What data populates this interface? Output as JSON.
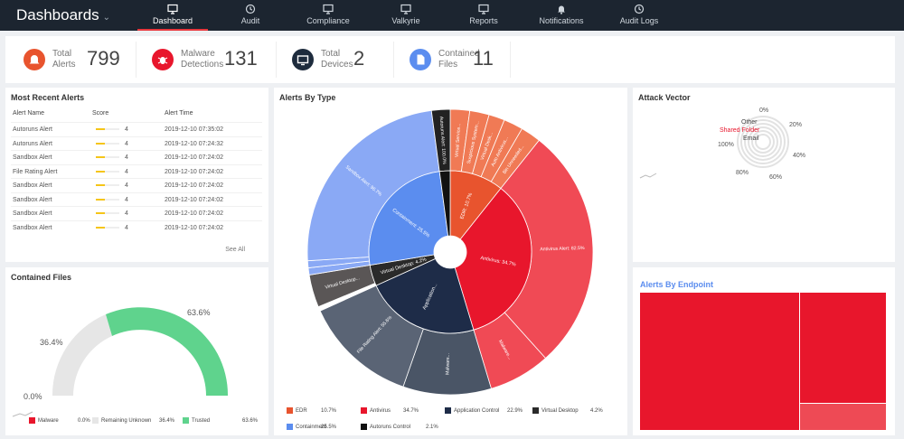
{
  "header": {
    "title": "Dashboards"
  },
  "nav": [
    {
      "label": "Dashboard",
      "icon": "monitor-icon",
      "active": true
    },
    {
      "label": "Audit",
      "icon": "history-icon",
      "active": false
    },
    {
      "label": "Compliance",
      "icon": "monitor-icon",
      "active": false
    },
    {
      "label": "Valkyrie",
      "icon": "monitor-icon",
      "active": false
    },
    {
      "label": "Reports",
      "icon": "monitor-icon",
      "active": false
    },
    {
      "label": "Notifications",
      "icon": "bell-icon",
      "active": false
    },
    {
      "label": "Audit Logs",
      "icon": "history-icon",
      "active": false
    }
  ],
  "stats": [
    {
      "name": "Total Alerts",
      "value": "799",
      "color": "#e8542e",
      "icon": "bell-icon"
    },
    {
      "name": "Malware Detections",
      "value": "131",
      "color": "#e8162c",
      "icon": "bug-icon"
    },
    {
      "name": "Total Devices",
      "value": "2",
      "color": "#1e2c3d",
      "icon": "monitor-icon"
    },
    {
      "name": "Contained Files",
      "value": "11",
      "color": "#5b8def",
      "icon": "file-icon"
    }
  ],
  "recent_alerts": {
    "title": "Most Recent Alerts",
    "headers": [
      "Alert Name",
      "Score",
      "Alert Time"
    ],
    "rows": [
      {
        "name": "Autoruns Alert",
        "score": "4",
        "time": "2019-12-10 07:35:02"
      },
      {
        "name": "Autoruns Alert",
        "score": "4",
        "time": "2019-12-10 07:24:32"
      },
      {
        "name": "Sandbox Alert",
        "score": "4",
        "time": "2019-12-10 07:24:02"
      },
      {
        "name": "File Rating Alert",
        "score": "4",
        "time": "2019-12-10 07:24:02"
      },
      {
        "name": "Sandbox Alert",
        "score": "4",
        "time": "2019-12-10 07:24:02"
      },
      {
        "name": "Sandbox Alert",
        "score": "4",
        "time": "2019-12-10 07:24:02"
      },
      {
        "name": "Sandbox Alert",
        "score": "4",
        "time": "2019-12-10 07:24:02"
      },
      {
        "name": "Sandbox Alert",
        "score": "4",
        "time": "2019-12-10 07:24:02"
      }
    ],
    "see_all": "See All"
  },
  "contained_files": {
    "title": "Contained Files",
    "labels": [
      "0.0%",
      "36.4%",
      "63.6%"
    ],
    "legend": [
      {
        "name": "Malware",
        "value": "0.0%",
        "color": "#e8162c"
      },
      {
        "name": "Remaining Unknown",
        "value": "36.4%",
        "color": "#e6e6e6"
      },
      {
        "name": "Trusted",
        "value": "63.6%",
        "color": "#5fd38d"
      }
    ]
  },
  "alerts_by_type": {
    "title": "Alerts By Type",
    "inner": [
      {
        "label": "EDR: 10.7%",
        "value": 10.7,
        "color": "#e8542e"
      },
      {
        "label": "Antivirus: 34.7%",
        "value": 34.7,
        "color": "#e8162c"
      },
      {
        "label": "Application...",
        "value": 22.9,
        "color": "#1e2c48"
      },
      {
        "label": "Virtual Desktop: 4.2%",
        "value": 4.2,
        "color": "#2a2a2a"
      },
      {
        "label": "Containment: 25.5%",
        "value": 25.5,
        "color": "#5b8def"
      },
      {
        "label": "",
        "value": 2.1,
        "color": "#111111"
      }
    ],
    "outer": [
      {
        "label": "Virtual Service...",
        "value": 2.2,
        "color": "#f07a55"
      },
      {
        "label": "Suspicious System...",
        "value": 2.2,
        "color": "#f07a55"
      },
      {
        "label": "Virtual Desk...",
        "value": 1.8,
        "color": "#f07a55"
      },
      {
        "label": "Auto Antivirus...",
        "value": 2.2,
        "color": "#f07a55"
      },
      {
        "label": "Bin Unneeded...",
        "value": 2.3,
        "color": "#f07a55"
      },
      {
        "label": "Antivirus Alert: 82.5%",
        "value": 27.7,
        "color": "#f04a55"
      },
      {
        "label": "Malware...",
        "value": 7.0,
        "color": "#f04a55"
      },
      {
        "label": "Malware...",
        "value": 10.0,
        "color": "#4a5566"
      },
      {
        "label": "File Rating Alert: 55.6%",
        "value": 12.9,
        "color": "#5a6475"
      },
      {
        "label": "",
        "value": 0.5,
        "color": "#ffffff"
      },
      {
        "label": "Virtual Desktop...",
        "value": 3.7,
        "color": "#5a5656"
      },
      {
        "label": "",
        "value": 0.8,
        "color": "#8aa9f5"
      },
      {
        "label": "",
        "value": 0.8,
        "color": "#8aa9f5"
      },
      {
        "label": "Sandbox Alert: 96.7%",
        "value": 23.9,
        "color": "#8aa9f5"
      },
      {
        "label": "Autoruns Alert: 100.0%",
        "value": 2.1,
        "color": "#222222"
      }
    ],
    "legend": [
      {
        "name": "EDR",
        "value": "10.7%",
        "color": "#e8542e"
      },
      {
        "name": "Antivirus",
        "value": "34.7%",
        "color": "#e8162c"
      },
      {
        "name": "Application Control",
        "value": "22.9%",
        "color": "#1e2c48"
      },
      {
        "name": "Virtual Desktop",
        "value": "4.2%",
        "color": "#2a2a2a"
      },
      {
        "name": "Containment",
        "value": "25.5%",
        "color": "#5b8def"
      },
      {
        "name": "Autoruns Control",
        "value": "2.1%",
        "color": "#111111"
      }
    ]
  },
  "attack_vector": {
    "title": "Attack Vector",
    "categories": [
      "Other",
      "Shared Folder",
      "Email"
    ],
    "ticks": [
      "0%",
      "20%",
      "40%",
      "60%",
      "80%",
      "100%"
    ],
    "highlight_color": "#e8162c"
  },
  "alerts_by_endpoint": {
    "title": "Alerts By Endpoint",
    "title_color": "#5b8def"
  }
}
